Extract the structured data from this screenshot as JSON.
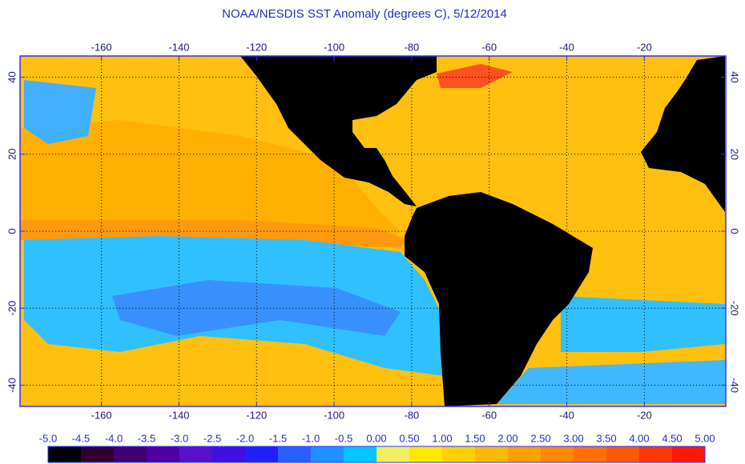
{
  "title": "NOAA/NESDIS SST Anomaly (degrees C), 5/12/2014",
  "map": {
    "lonlim": [
      -181,
      1
    ],
    "latlim": [
      -45.5,
      45.5
    ],
    "lonticks": [
      -160,
      -140,
      -120,
      -100,
      -80,
      -60,
      -40,
      -20
    ],
    "latticks": [
      -40,
      -20,
      0,
      20,
      40
    ],
    "grid": true
  },
  "colorbar": {
    "ticks": [
      {
        "value": -5,
        "label": "-5.0"
      },
      {
        "value": -4.5,
        "label": "-4.5"
      },
      {
        "value": -4,
        "label": "-4.0"
      },
      {
        "value": -3.5,
        "label": "-3.5"
      },
      {
        "value": -3,
        "label": "-3.0"
      },
      {
        "value": -2.5,
        "label": "-2.5"
      },
      {
        "value": -2,
        "label": "-2.0"
      },
      {
        "value": -1.5,
        "label": "-1.5"
      },
      {
        "value": -1,
        "label": "-1.0"
      },
      {
        "value": -0.5,
        "label": "-0.5"
      },
      {
        "value": 0,
        "label": "0.00"
      },
      {
        "value": 0.5,
        "label": "0.50"
      },
      {
        "value": 1,
        "label": "1.00"
      },
      {
        "value": 1.5,
        "label": "1.50"
      },
      {
        "value": 2,
        "label": "2.00"
      },
      {
        "value": 2.5,
        "label": "2.50"
      },
      {
        "value": 3,
        "label": "3.00"
      },
      {
        "value": 3.5,
        "label": "3.50"
      },
      {
        "value": 4,
        "label": "4.00"
      },
      {
        "value": 4.5,
        "label": "4.50"
      },
      {
        "value": 5,
        "label": "5.00"
      }
    ],
    "colors": [
      "#000000",
      "#300030",
      "#400070",
      "#5000a0",
      "#5a10c8",
      "#4010e0",
      "#2020ff",
      "#2860ff",
      "#2090ff",
      "#00c8ff",
      "#f0f060",
      "#ffe800",
      "#ffd000",
      "#ffb800",
      "#ffa000",
      "#ff8800",
      "#ff7000",
      "#ff5800",
      "#ff3800",
      "#ff1800"
    ]
  }
}
